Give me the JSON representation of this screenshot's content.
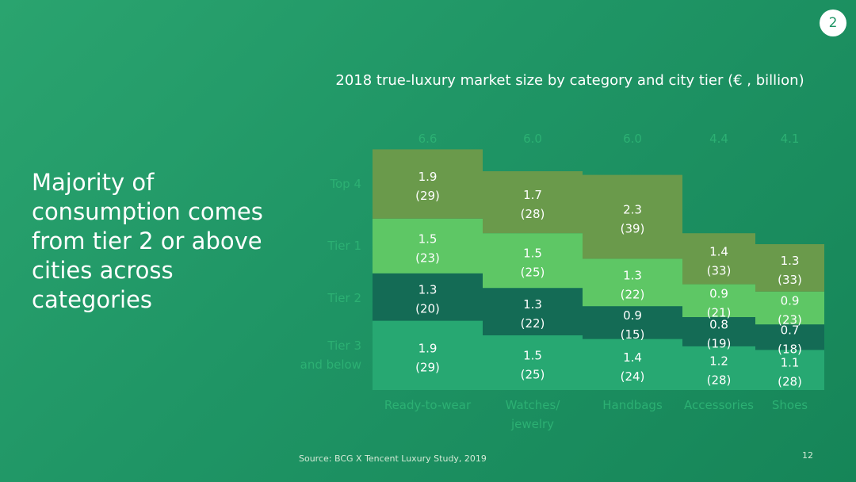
{
  "page_badge": "2",
  "headline": "Majority of consumption comes from tier 2 or above cities across categories",
  "source": "Source: BCG X Tencent Luxury Study, 2019",
  "page_number": "12",
  "colors": {
    "top4": "#6a9a4b",
    "tier1": "#5ec765",
    "tier2": "#146b55",
    "tier3": "#27a872",
    "faint_label": "#2cb073",
    "value_text": "#ffffff"
  },
  "chart_data": {
    "type": "bar",
    "stacked": true,
    "title": "2018 true-luxury market size by category and city tier (€ , billion)",
    "categories": [
      "Ready-to-wear",
      "Watches/ jewelry",
      "Handbags",
      "Accessories",
      "Shoes"
    ],
    "totals": [
      "6.6",
      "6.0",
      "6.0",
      "4.4",
      "4.1"
    ],
    "series": [
      {
        "name": "Tier 3 and below",
        "values": [
          1.9,
          1.5,
          1.4,
          1.2,
          1.1
        ],
        "percent": [
          29,
          25,
          24,
          28,
          28
        ]
      },
      {
        "name": "Tier 2",
        "values": [
          1.3,
          1.3,
          0.9,
          0.8,
          0.7
        ],
        "percent": [
          20,
          22,
          15,
          19,
          18
        ]
      },
      {
        "name": "Tier 1",
        "values": [
          1.5,
          1.5,
          1.3,
          0.9,
          0.9
        ],
        "percent": [
          23,
          25,
          22,
          21,
          23
        ]
      },
      {
        "name": "Top 4",
        "values": [
          1.9,
          1.7,
          2.3,
          1.4,
          1.3
        ],
        "percent": [
          29,
          28,
          39,
          33,
          33
        ]
      }
    ],
    "legend": "left"
  }
}
